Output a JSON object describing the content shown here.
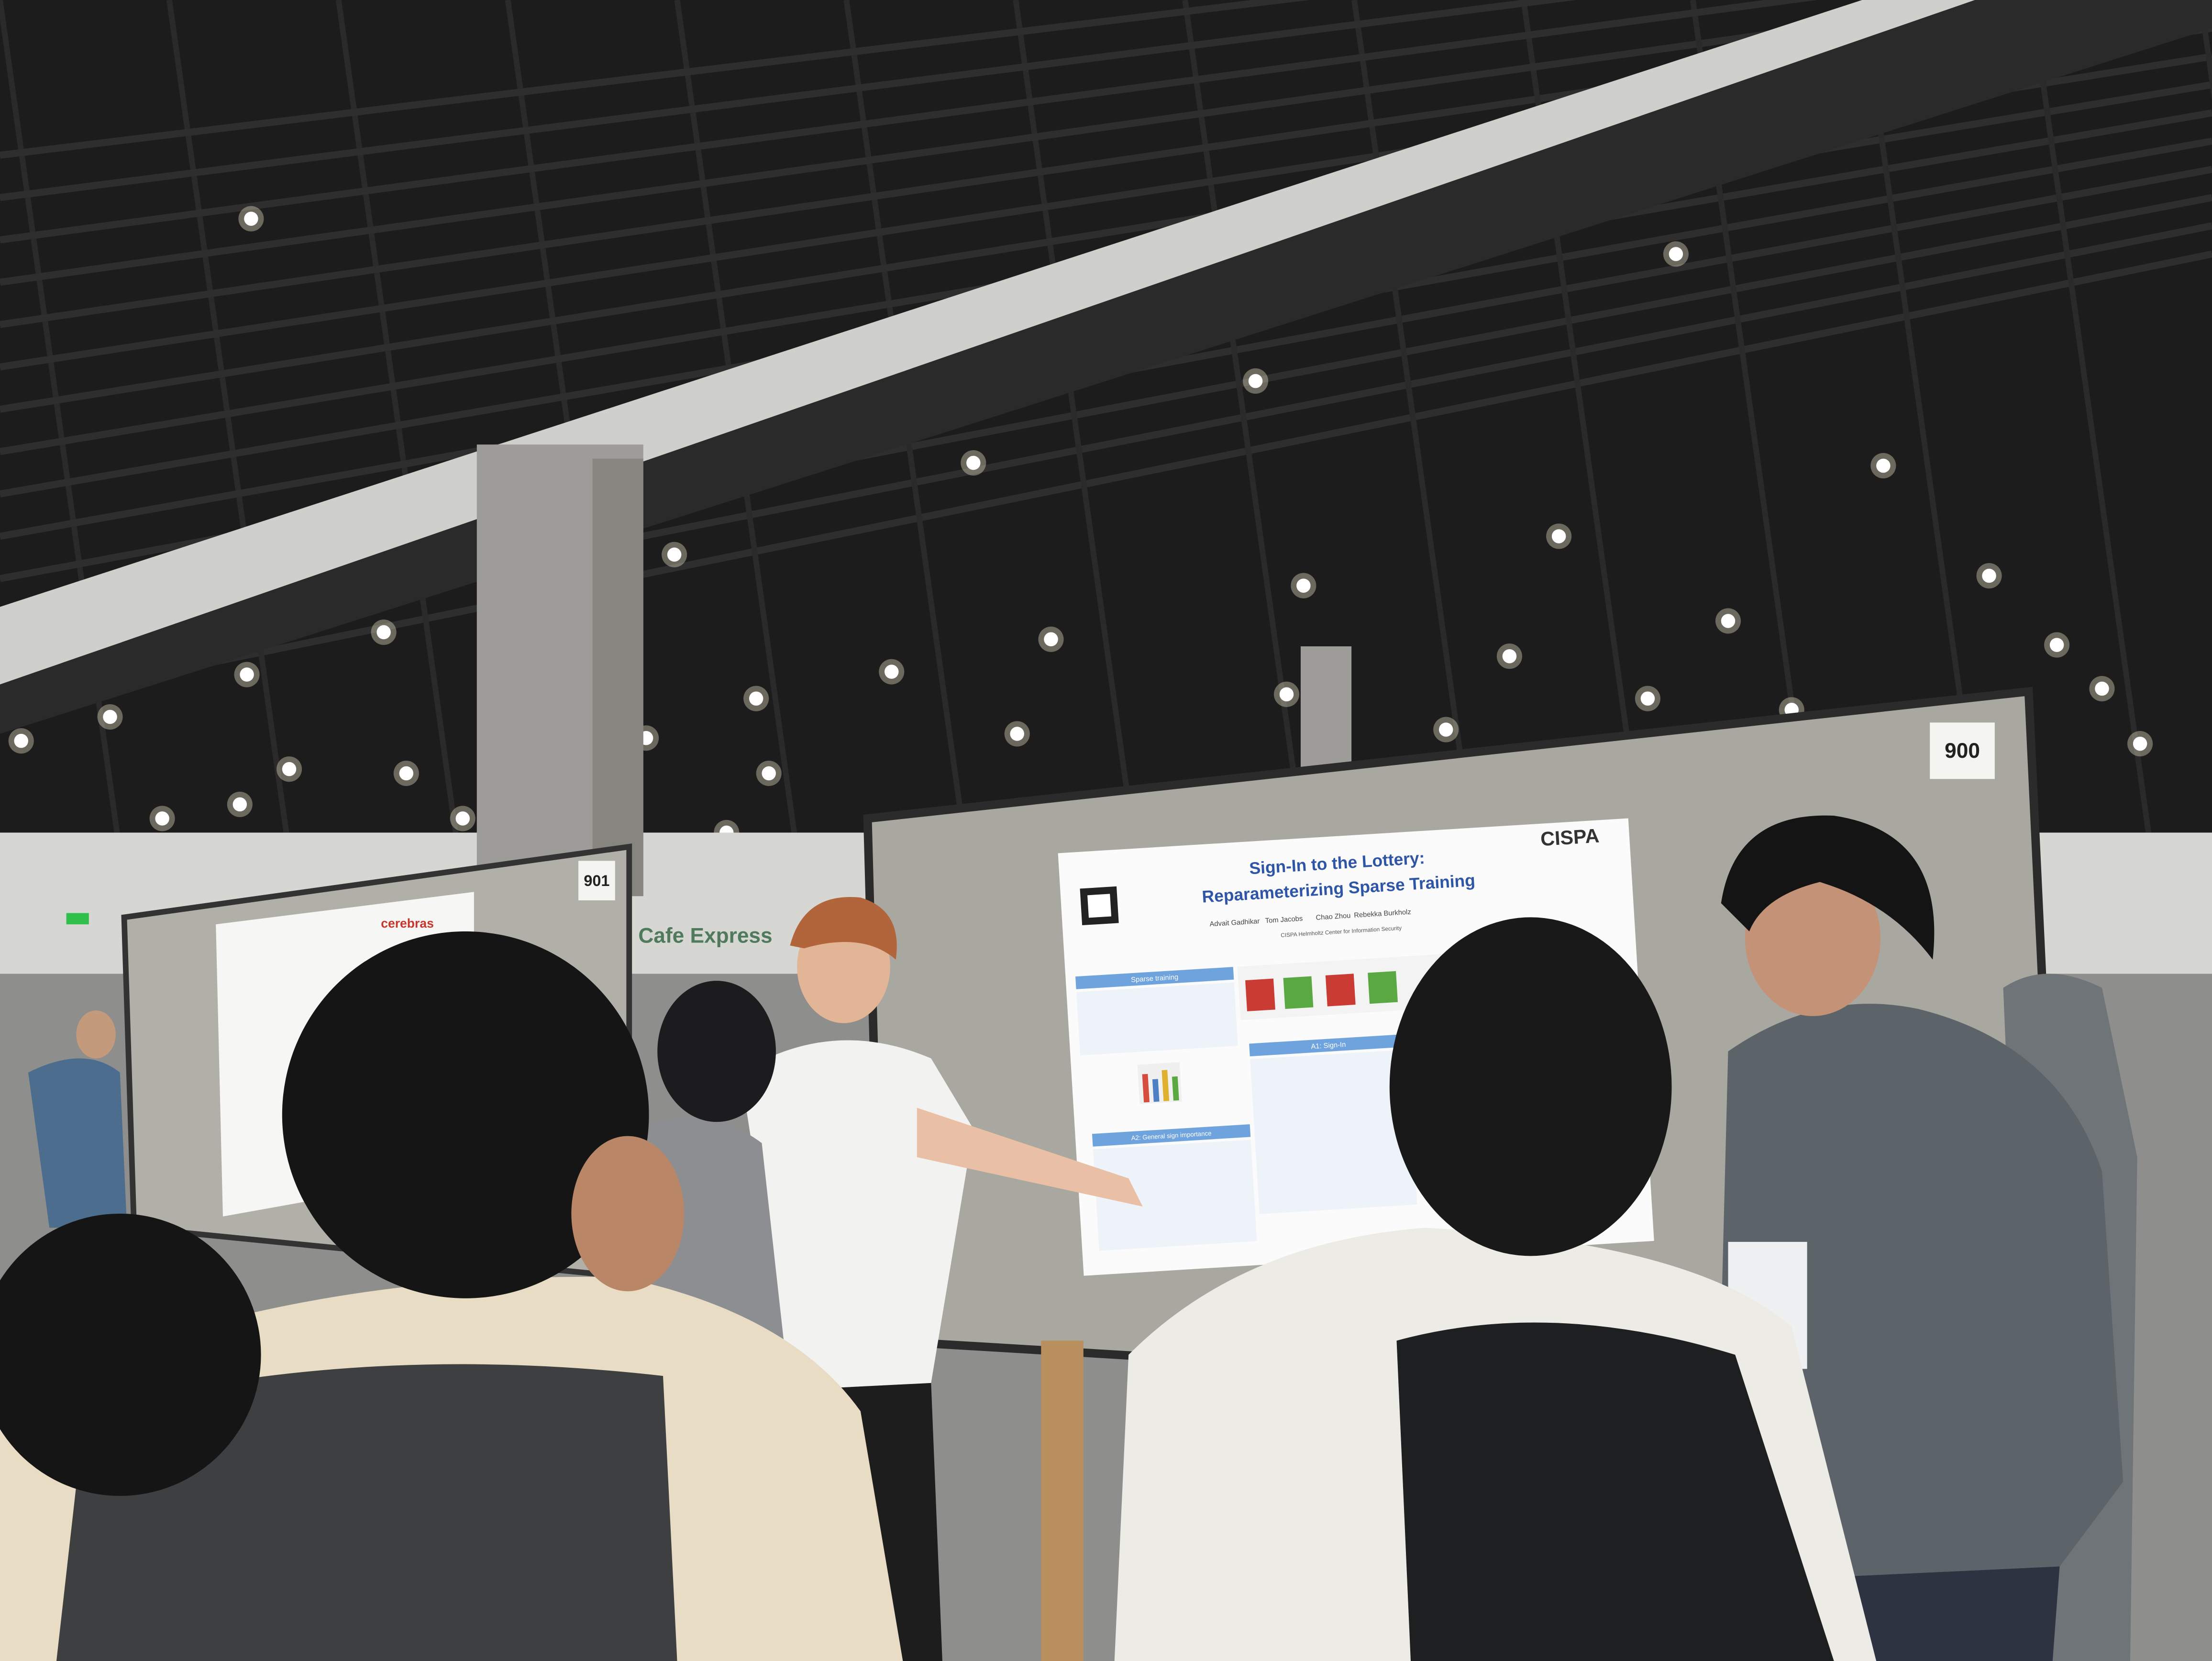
{
  "scene": {
    "board_numbers": [
      "900",
      "901"
    ],
    "signage": "Cafe Express"
  },
  "poster": {
    "title_line1": "Sign-In to the Lottery:",
    "title_line2": "Reparameterizing Sparse Training",
    "authors": [
      "Advait Gadhikar",
      "Tom Jacobs",
      "Chao Zhou",
      "Rebekka Burkholz"
    ],
    "affiliation": "CISPA Helmholtz Center for Information Security",
    "logo": "CISPA",
    "sections": [
      "Sparse training",
      "A1: Sign-In",
      "A2: General sign importance"
    ]
  },
  "neighbor_poster": {
    "logo": "cerebras"
  }
}
